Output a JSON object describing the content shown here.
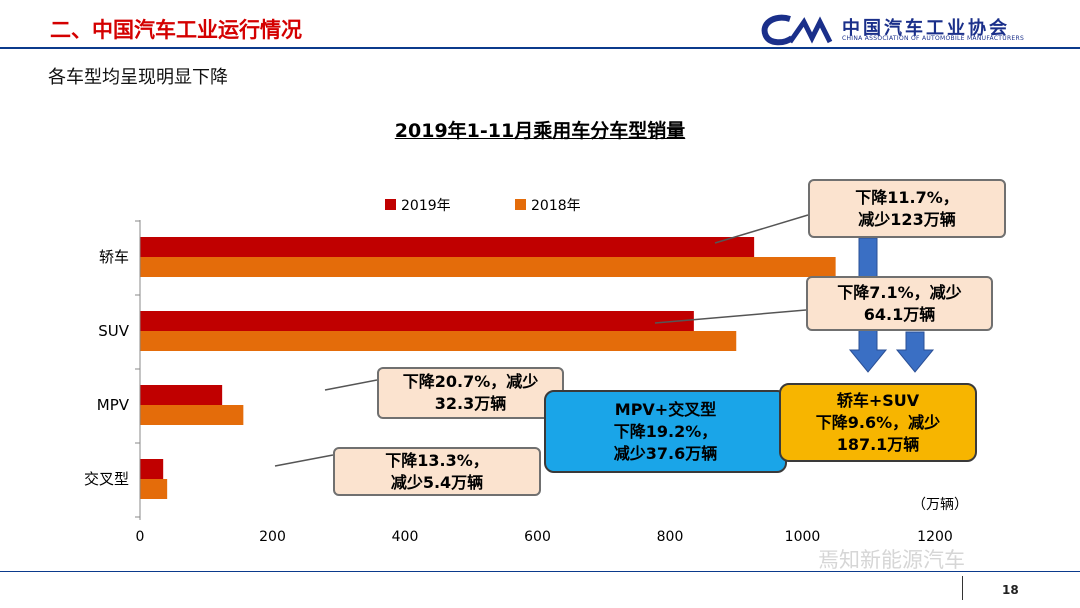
{
  "header": {
    "title": "二、中国汽车工业运行情况"
  },
  "logo": {
    "name_cn": "中国汽车工业协会",
    "name_en": "CHINA ASSOCIATION OF AUTOMOBILE MANUFACTURERS"
  },
  "subtitle": "各车型均呈现明显下降",
  "chart_data": {
    "type": "bar",
    "orientation": "horizontal",
    "title": "2019年1-11月乘用车分车型销量",
    "categories": [
      "轿车",
      "SUV",
      "MPV",
      "交叉型"
    ],
    "series": [
      {
        "name": "2019年",
        "color": "#c00000",
        "values": [
          927,
          836,
          124,
          35
        ]
      },
      {
        "name": "2018年",
        "color": "#e46c0a",
        "values": [
          1050,
          900,
          156,
          41
        ]
      }
    ],
    "xlim": [
      0,
      1200
    ],
    "xticks": [
      0,
      200,
      400,
      600,
      800,
      1000,
      1200
    ],
    "unit_label": "（万辆）",
    "legend": "top",
    "grid": false
  },
  "annotations": {
    "sedan": {
      "line1": "下降11.7%，",
      "line2": "减少123万辆"
    },
    "suv": {
      "line1": "下降7.1%，减少",
      "line2": "64.1万辆"
    },
    "mpv": {
      "line1": "下降20.7%，减少",
      "line2": "32.3万辆"
    },
    "crossover": {
      "line1": "下降13.3%，",
      "line2": "减少5.4万辆"
    },
    "mpv_crossover_total": {
      "line1": "MPV+交叉型",
      "line2": "下降19.2%，",
      "line3": "减少37.6万辆"
    },
    "sedan_suv_total": {
      "line1": "轿车+SUV",
      "line2": "下降9.6%，减少",
      "line3": "187.1万辆"
    }
  },
  "colors": {
    "accent_red": "#d40000",
    "navy": "#0b3a8c",
    "callout_fill": "#fbe3cf",
    "total_blue": "#1aa5e8",
    "total_yellow": "#f7b500",
    "arrow_blue": "#3a6fc4"
  },
  "watermark": "焉知新能源汽车",
  "page_number": "18"
}
